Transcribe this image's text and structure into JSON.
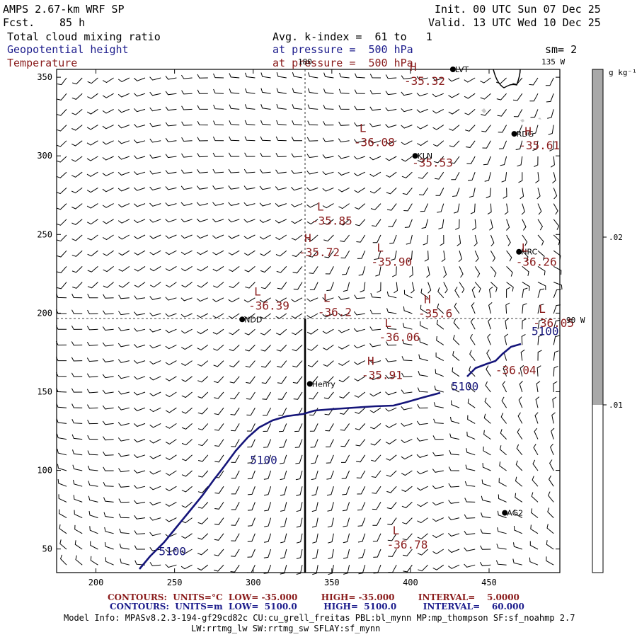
{
  "header": {
    "model": "AMPS 2.67-km WRF SP",
    "fcst_label": "Fcst.",
    "fcst_value": "85 h",
    "init": "Init. 00 UTC Sun 07 Dec 25",
    "valid": "Valid. 13 UTC Wed 10 Dec 25",
    "field1": "Total cloud mixing ratio",
    "field2": "Geopotential height",
    "field3": "Temperature",
    "avg": "Avg. k-index =  61 to   1",
    "pressure1": "at pressure =  500 hPa",
    "pressure2": "at pressure =  500 hPa",
    "sm": "sm= 2"
  },
  "axes": {
    "x_ticks": [
      200,
      250,
      300,
      350,
      400,
      450
    ],
    "x_min": 175,
    "x_max": 495,
    "y_ticks": [
      50,
      100,
      150,
      200,
      250,
      300,
      350
    ],
    "y_min": 35,
    "y_max": 355
  },
  "grid_labels": {
    "lon_180": "180",
    "lon_135w": "135 W",
    "lon_90w": "90 W"
  },
  "colorbar": {
    "unit": "g kg⁻¹",
    "labels": [
      ".02",
      ".01"
    ],
    "fill": "#a9a9a9"
  },
  "stations": [
    {
      "name": "LVT",
      "x": 427,
      "y": 355
    },
    {
      "name": "RDG",
      "x": 466,
      "y": 314
    },
    {
      "name": "KLN",
      "x": 403,
      "y": 300
    },
    {
      "name": "HRC",
      "x": 469,
      "y": 239
    },
    {
      "name": "NDD",
      "x": 293,
      "y": 196
    },
    {
      "name": "Henry",
      "x": 336,
      "y": 155
    },
    {
      "name": "AG2",
      "x": 460,
      "y": 73
    }
  ],
  "temp_labels": [
    {
      "letter": "H",
      "value": "-35.32",
      "x": 396,
      "y": 347
    },
    {
      "letter": "L",
      "value": "-36.08",
      "x": 364,
      "y": 308
    },
    {
      "letter": "",
      "value": "-35.53",
      "x": 401,
      "y": 295
    },
    {
      "letter": "H",
      "value": "-35.61",
      "x": 469,
      "y": 306
    },
    {
      "letter": "L",
      "value": "-35.85",
      "x": 337,
      "y": 258
    },
    {
      "letter": "H",
      "value": "-35.72",
      "x": 329,
      "y": 238
    },
    {
      "letter": "L",
      "value": "-35.90",
      "x": 375,
      "y": 232
    },
    {
      "letter": "L",
      "value": "-36.26",
      "x": 467,
      "y": 232
    },
    {
      "letter": "L",
      "value": "-36.39",
      "x": 297,
      "y": 204
    },
    {
      "letter": "L",
      "value": "-36.2",
      "x": 341,
      "y": 200
    },
    {
      "letter": "H",
      "value": "-35.6",
      "x": 405,
      "y": 199
    },
    {
      "letter": "L",
      "value": "-36.05",
      "x": 478,
      "y": 193
    },
    {
      "letter": "L",
      "value": "-36.06",
      "x": 380,
      "y": 184
    },
    {
      "letter": "H",
      "value": "-35.91",
      "x": 369,
      "y": 160
    },
    {
      "letter": "",
      "value": "-36.04",
      "x": 454,
      "y": 163
    },
    {
      "letter": "L",
      "value": "-36.78",
      "x": 385,
      "y": 52
    }
  ],
  "height_labels": [
    {
      "value": "5100",
      "x": 298,
      "y": 104
    },
    {
      "value": "5100",
      "x": 240,
      "y": 46
    },
    {
      "value": "5100",
      "x": 426,
      "y": 151
    },
    {
      "value": "5100",
      "x": 477,
      "y": 186
    }
  ],
  "footer": {
    "red_line": "CONTOURS:  UNITS=°C  LOW= -35.000        HIGH= -35.000        INTERVAL=    5.0000",
    "blue_line": "CONTOURS:  UNITS=m  LOW=  5100.0         HIGH=  5100.0         INTERVAL=    60.000",
    "model_info1": "Model Info: MPASv8.2.3-194-gf29cd82c CU:cu_grell_freitas PBL:bl_mynn MP:mp_thompson SF:sf_noahmp 2.7",
    "model_info2": "LW:rrtmg_lw SW:rrtmg_sw SFLAY:sf_mynn"
  }
}
